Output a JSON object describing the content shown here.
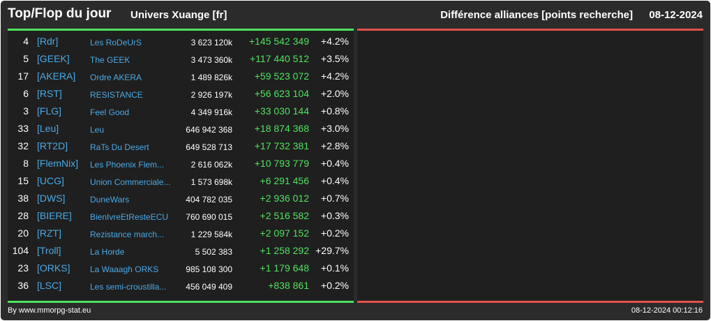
{
  "header": {
    "title": "Top/Flop du jour",
    "universe": "Univers Xuange [fr]",
    "metric": "Différence alliances [points recherche]",
    "date": "08-12-2024"
  },
  "colors": {
    "top_accent": "#4fe35f",
    "flop_accent": "#e2534b",
    "link": "#4aa9e6",
    "panel": "#2b2b2b"
  },
  "top": [
    {
      "rank": "4",
      "tag": "[Rdr]",
      "name": "Les RoDeUrS",
      "points": "3 623 120k",
      "diff": "+145 542 349",
      "pct": "+4.2%"
    },
    {
      "rank": "5",
      "tag": "[GEEK]",
      "name": "The GEEK",
      "points": "3 473 360k",
      "diff": "+117 440 512",
      "pct": "+3.5%"
    },
    {
      "rank": "17",
      "tag": "[AKERA]",
      "name": "Ordre AKERA",
      "points": "1 489 826k",
      "diff": "+59 523 072",
      "pct": "+4.2%"
    },
    {
      "rank": "6",
      "tag": "[RST]",
      "name": "RESISTANCE",
      "points": "2 926 197k",
      "diff": "+56 623 104",
      "pct": "+2.0%"
    },
    {
      "rank": "3",
      "tag": "[FLG]",
      "name": "Feel Good",
      "points": "4 349 916k",
      "diff": "+33 030 144",
      "pct": "+0.8%"
    },
    {
      "rank": "33",
      "tag": "[Leu]",
      "name": "Leu",
      "points": "646 942 368",
      "diff": "+18 874 368",
      "pct": "+3.0%"
    },
    {
      "rank": "32",
      "tag": "[RT2D]",
      "name": "RaTs Du Desert",
      "points": "649 528 713",
      "diff": "+17 732 381",
      "pct": "+2.8%"
    },
    {
      "rank": "8",
      "tag": "[FlemNix]",
      "name": "Les Phoenix Flem...",
      "points": "2 616 062k",
      "diff": "+10 793 779",
      "pct": "+0.4%"
    },
    {
      "rank": "15",
      "tag": "[UCG]",
      "name": "Union Commerciale...",
      "points": "1 573 698k",
      "diff": "+6 291 456",
      "pct": "+0.4%"
    },
    {
      "rank": "38",
      "tag": "[DWS]",
      "name": "DuneWars",
      "points": "404 782 035",
      "diff": "+2 936 012",
      "pct": "+0.7%"
    },
    {
      "rank": "28",
      "tag": "[BIERE]",
      "name": "BienIvreEtResteECU",
      "points": "760 690 015",
      "diff": "+2 516 582",
      "pct": "+0.3%"
    },
    {
      "rank": "20",
      "tag": "[RZT]",
      "name": "Rezistance march...",
      "points": "1 229 584k",
      "diff": "+2 097 152",
      "pct": "+0.2%"
    },
    {
      "rank": "104",
      "tag": "[Troll]",
      "name": "La Horde",
      "points": "5 502 383",
      "diff": "+1 258 292",
      "pct": "+29.7%"
    },
    {
      "rank": "23",
      "tag": "[ORKS]",
      "name": "La Waaagh ORKS",
      "points": "985 108 300",
      "diff": "+1 179 648",
      "pct": "+0.1%"
    },
    {
      "rank": "36",
      "tag": "[LSC]",
      "name": "Les semi-croustilla...",
      "points": "456 049 409",
      "diff": "+838 861",
      "pct": "+0.2%"
    }
  ],
  "footer": {
    "credit": "By www.mmorpg-stat.eu",
    "timestamp": "08-12-2024 00:12:16"
  }
}
